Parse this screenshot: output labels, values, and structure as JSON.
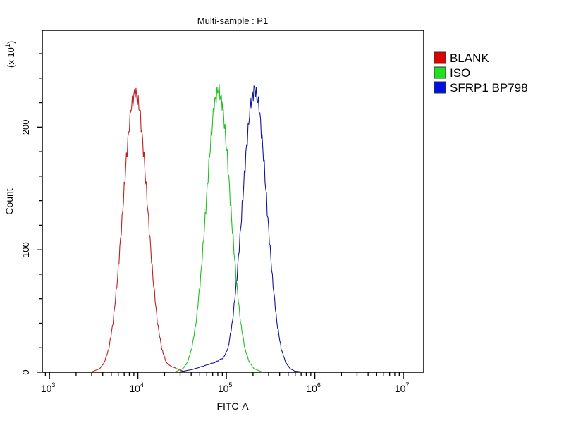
{
  "chart_data": {
    "type": "line",
    "title": "Multi-sample : P1",
    "xlabel": "FITC-A",
    "ylabel": "Count",
    "y_scale_note": "(x 10",
    "y_scale_exp": "1",
    "y_scale_close": ")",
    "xscale": "log",
    "xlim": [
      830,
      17000000
    ],
    "ylim": [
      0,
      279
    ],
    "x_ticks": [
      {
        "base": "10",
        "exp": "3",
        "value": 1000
      },
      {
        "base": "10",
        "exp": "4",
        "value": 10000
      },
      {
        "base": "10",
        "exp": "5",
        "value": 100000
      },
      {
        "base": "10",
        "exp": "6",
        "value": 1000000
      },
      {
        "base": "10",
        "exp": "7",
        "value": 10000000
      }
    ],
    "y_ticks": [
      {
        "label": "0",
        "value": 0
      },
      {
        "label": "100",
        "value": 100
      },
      {
        "label": "200",
        "value": 200
      }
    ],
    "legend_position": "right",
    "series": [
      {
        "name": "BLANK",
        "color": "#e00000",
        "line_color": "#c02020",
        "x": [
          2951,
          3715,
          4169,
          4677,
          5248,
          5888,
          6607,
          7413,
          8318,
          9333,
          10471,
          11749,
          13183,
          14791,
          16596,
          18621,
          20893,
          23442,
          29512,
          35000
        ],
        "y": [
          0,
          3,
          8,
          19,
          41,
          77,
          124,
          175,
          215,
          230,
          215,
          175,
          124,
          77,
          41,
          19,
          8,
          5,
          2,
          0
        ]
      },
      {
        "name": "ISO",
        "color": "#20e020",
        "line_color": "#20c020",
        "x": [
          25704,
          32359,
          36308,
          40738,
          45709,
          51286,
          57544,
          64565,
          72444,
          81283,
          91201,
          102329,
          114815,
          128825,
          144544,
          162181,
          181970,
          204174,
          257040
        ],
        "y": [
          0,
          3,
          8,
          20,
          42,
          78,
          126,
          177,
          218,
          232,
          217,
          176,
          124,
          77,
          41,
          19,
          8,
          3,
          0
        ]
      },
      {
        "name": "SFRP1 BP798",
        "color": "#0010e0",
        "line_color": "#101890",
        "x": [
          28000,
          40000,
          55000,
          74131,
          93325,
          104713,
          117490,
          131826,
          147911,
          165959,
          186209,
          208930,
          234423,
          263027,
          295121,
          331131,
          371535,
          416869,
          467735,
          524807,
          588844,
          741310
        ],
        "y": [
          0,
          2,
          5,
          8,
          12,
          20,
          42,
          78,
          126,
          177,
          218,
          232,
          217,
          176,
          124,
          77,
          41,
          19,
          8,
          3,
          1,
          0
        ]
      }
    ]
  }
}
